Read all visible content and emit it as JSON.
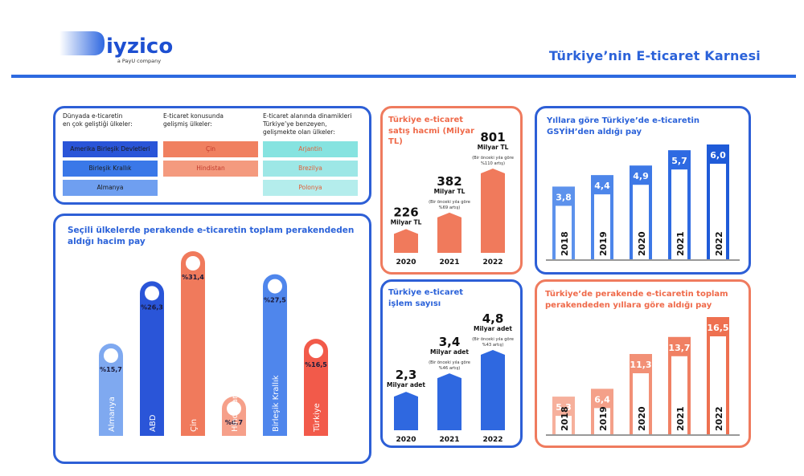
{
  "header": {
    "logo_text": "iyzico",
    "logo_subtext": "a PayU company",
    "title": "Türkiye’nin E-ticaret Karnesi"
  },
  "countries_panel": {
    "columns": [
      {
        "title_lines": [
          "Dünyada e-ticaretin",
          "en çok geliştiği ülkeler:"
        ],
        "items": [
          "Amerika Birleşik Devletleri",
          "Birleşik Krallık",
          "Almanya"
        ],
        "colors": [
          "#2a55d8",
          "#3a78e8",
          "#6f9ff0"
        ],
        "text_color": "#1b1b1b"
      },
      {
        "title_lines": [
          "E-ticaret konusunda",
          "gelişmiş ülkeler:"
        ],
        "items": [
          "Çin",
          "Hindistan"
        ],
        "colors": [
          "#f08060",
          "#f49a7e"
        ],
        "text_color": "#c0392b"
      },
      {
        "title_lines": [
          "E-ticaret alanında dinamikleri",
          "Türkiye’ye benzeyen,",
          "gelişmekte olan ülkeler:"
        ],
        "items": [
          "Arjantin",
          "Brezilya",
          "Polonya"
        ],
        "colors": [
          "#86e3e0",
          "#9de7e6",
          "#b4edec"
        ],
        "text_color": "#e0603a"
      }
    ]
  },
  "chart_data": [
    {
      "id": "retail-share",
      "type": "bar",
      "title": "Seçili ülkelerde perakende e-ticaretin toplam perakendeden aldığı hacim pay",
      "categories": [
        "Almanya",
        "ABD",
        "Çin",
        "Hindistan",
        "Birleşik Krallık",
        "Türkiye"
      ],
      "values": [
        15.7,
        26.3,
        31.4,
        6.7,
        27.5,
        16.5
      ],
      "labels": [
        "%15,7",
        "%26,3",
        "%31,4",
        "%6,7",
        "%27,5",
        "%16,5"
      ],
      "colors": [
        "#7fa9f0",
        "#2a55d8",
        "#f07a5c",
        "#f6a08a",
        "#4f86ec",
        "#f25a4a"
      ]
    },
    {
      "id": "sales-volume",
      "type": "bar",
      "title": "Türkiye e-ticaret satış hacmi (Milyar TL)",
      "categories": [
        "2020",
        "2021",
        "2022"
      ],
      "values": [
        226,
        382,
        801
      ],
      "value_labels": [
        "226",
        "382",
        "801"
      ],
      "unit_labels": [
        "Milyar TL",
        "Milyar TL",
        "Milyar TL"
      ],
      "notes": [
        "",
        "(Bir önceki yıla göre %69 artış)",
        "(Bir önceki yıla göre %110 artış)"
      ],
      "color": "#f07a5c"
    },
    {
      "id": "transaction-count",
      "type": "bar",
      "title": "Türkiye e-ticaret işlem sayısı",
      "categories": [
        "2020",
        "2021",
        "2022"
      ],
      "values": [
        2.3,
        3.4,
        4.8
      ],
      "value_labels": [
        "2,3",
        "3,4",
        "4,8"
      ],
      "unit_labels": [
        "Milyar adet",
        "Milyar adet",
        "Milyar adet"
      ],
      "notes": [
        "",
        "(Bir önceki yıla göre %46 artış)",
        "(Bir önceki yıla göre %43 artış)"
      ],
      "color": "#2f68e0"
    },
    {
      "id": "gdp-share",
      "type": "bar",
      "title": "Yıllara göre Türkiye’de e-ticaretin GSYİH’den aldığı pay",
      "categories": [
        "2018",
        "2019",
        "2020",
        "2021",
        "2022"
      ],
      "values": [
        3.8,
        4.4,
        4.9,
        5.7,
        6.0
      ],
      "value_labels": [
        "3,8",
        "4,4",
        "4,9",
        "5,7",
        "6,0"
      ],
      "colors": [
        "#5d92ec",
        "#4d86ea",
        "#3d78e6",
        "#2e6ae2",
        "#1f5bd8"
      ]
    },
    {
      "id": "retail-share-years",
      "type": "bar",
      "title": "Türkiye’de perakende e-ticaretin toplam perakendeden yıllara göre aldığı pay",
      "categories": [
        "2018",
        "2019",
        "2020",
        "2021",
        "2022"
      ],
      "values": [
        5.3,
        6.4,
        11.3,
        13.7,
        16.5
      ],
      "value_labels": [
        "5,3",
        "6,4",
        "11,3",
        "13,7",
        "16,5"
      ],
      "colors": [
        "#f6b09c",
        "#f4a089",
        "#f29076",
        "#f08063",
        "#ee7050"
      ]
    }
  ]
}
